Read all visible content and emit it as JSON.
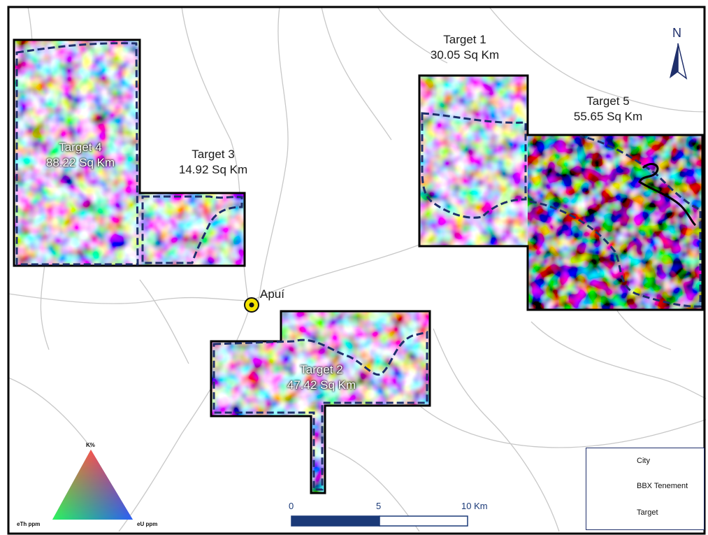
{
  "targets": [
    {
      "id": "target-1",
      "name": "Target 1",
      "area": "30.05 Sq Km"
    },
    {
      "id": "target-2",
      "name": "Target 2",
      "area": "47.42 Sq Km"
    },
    {
      "id": "target-3",
      "name": "Target 3",
      "area": "14.92 Sq Km"
    },
    {
      "id": "target-4",
      "name": "Target 4",
      "area": "88.22 Sq Km"
    },
    {
      "id": "target-5",
      "name": "Target 5",
      "area": "55.65 Sq Km"
    }
  ],
  "city": {
    "name": "Apuí"
  },
  "north_arrow": {
    "label": "N",
    "icon": "north-arrow-icon"
  },
  "scale_bar": {
    "ticks": [
      "0",
      "5",
      "10  Km"
    ]
  },
  "ternary": {
    "top": "K%",
    "left": "eTh ppm",
    "right": "eU ppm"
  },
  "legend": {
    "items": [
      {
        "label": "City",
        "icon": "city-icon"
      },
      {
        "label": "BBX Tenement",
        "icon": "tenement-icon"
      },
      {
        "label": "Target",
        "icon": "target-dashed-icon"
      }
    ]
  },
  "colors": {
    "frame": "#000000",
    "target_line": "#1f2f6b",
    "city_fill": "#f5e400",
    "scale": "#1b3a78"
  }
}
